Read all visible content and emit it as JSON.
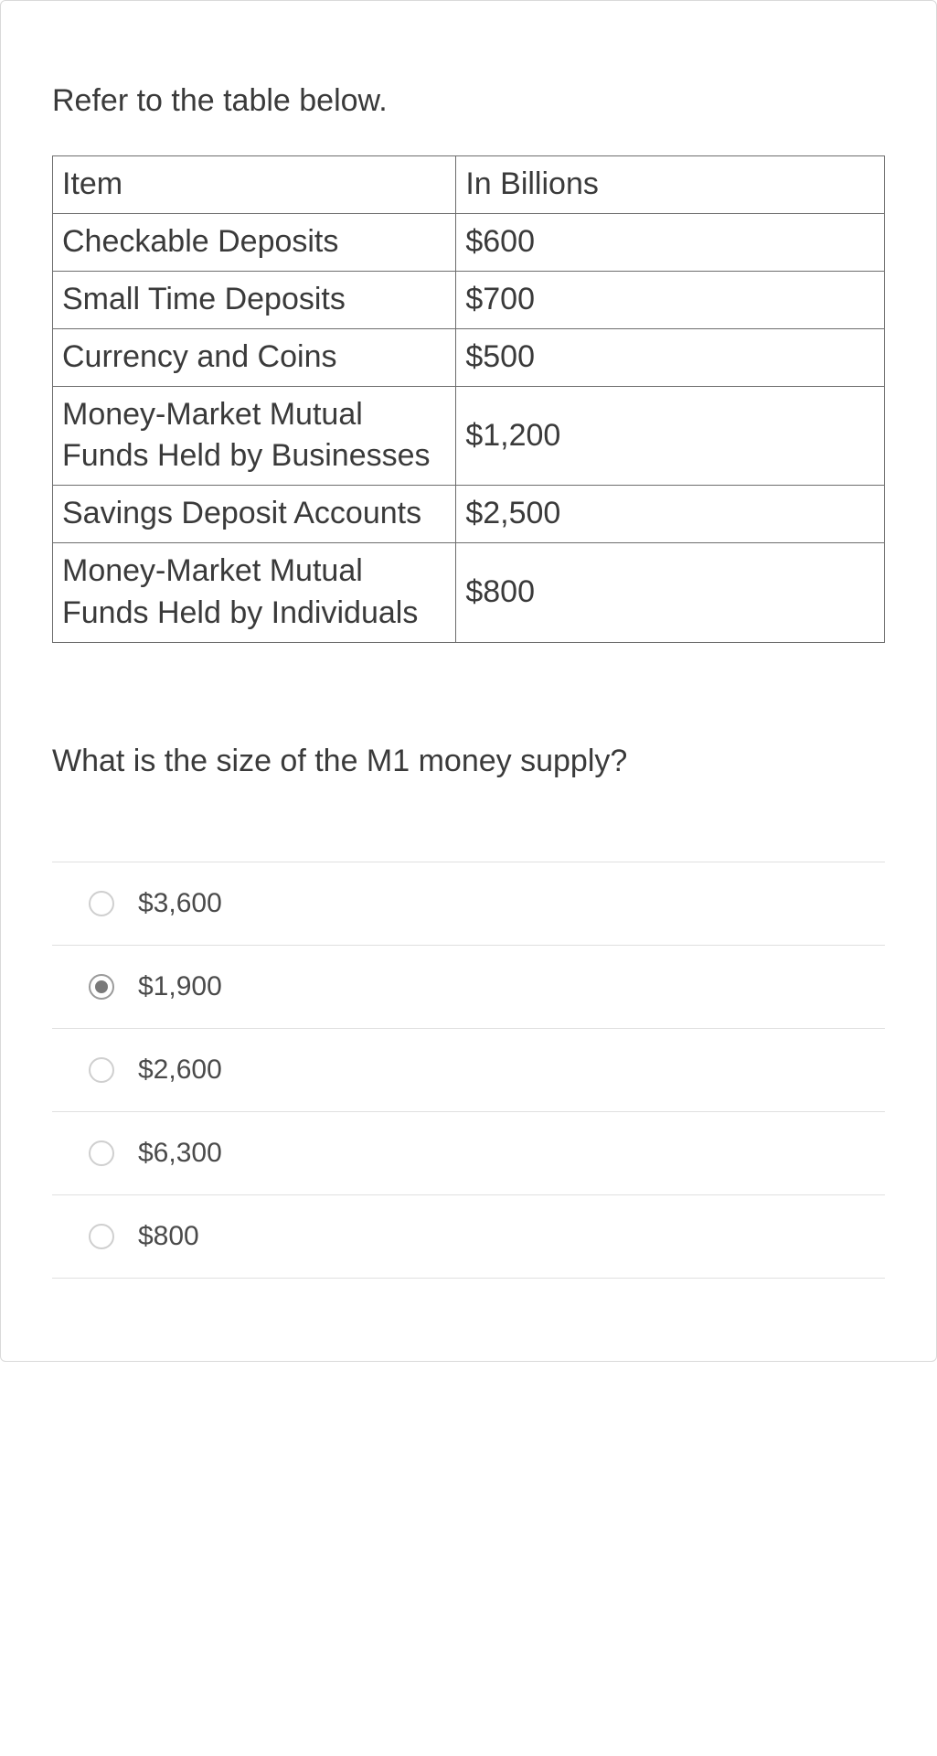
{
  "intro_text": "Refer to the table below.",
  "table": {
    "columns": [
      "Item",
      "In Billions"
    ],
    "rows": [
      [
        "Checkable Deposits",
        "$600"
      ],
      [
        "Small Time Deposits",
        "$700"
      ],
      [
        "Currency and Coins",
        "$500"
      ],
      [
        "Money-Market Mutual Funds Held by Businesses",
        "$1,200"
      ],
      [
        "Savings Deposit Accounts",
        "$2,500"
      ],
      [
        "Money-Market Mutual Funds Held by Individuals",
        "$800"
      ]
    ]
  },
  "question": "What is the size of the M1 money supply?",
  "options": [
    {
      "label": "$3,600",
      "selected": false
    },
    {
      "label": "$1,900",
      "selected": true
    },
    {
      "label": "$2,600",
      "selected": false
    },
    {
      "label": "$6,300",
      "selected": false
    },
    {
      "label": "$800",
      "selected": false
    }
  ]
}
